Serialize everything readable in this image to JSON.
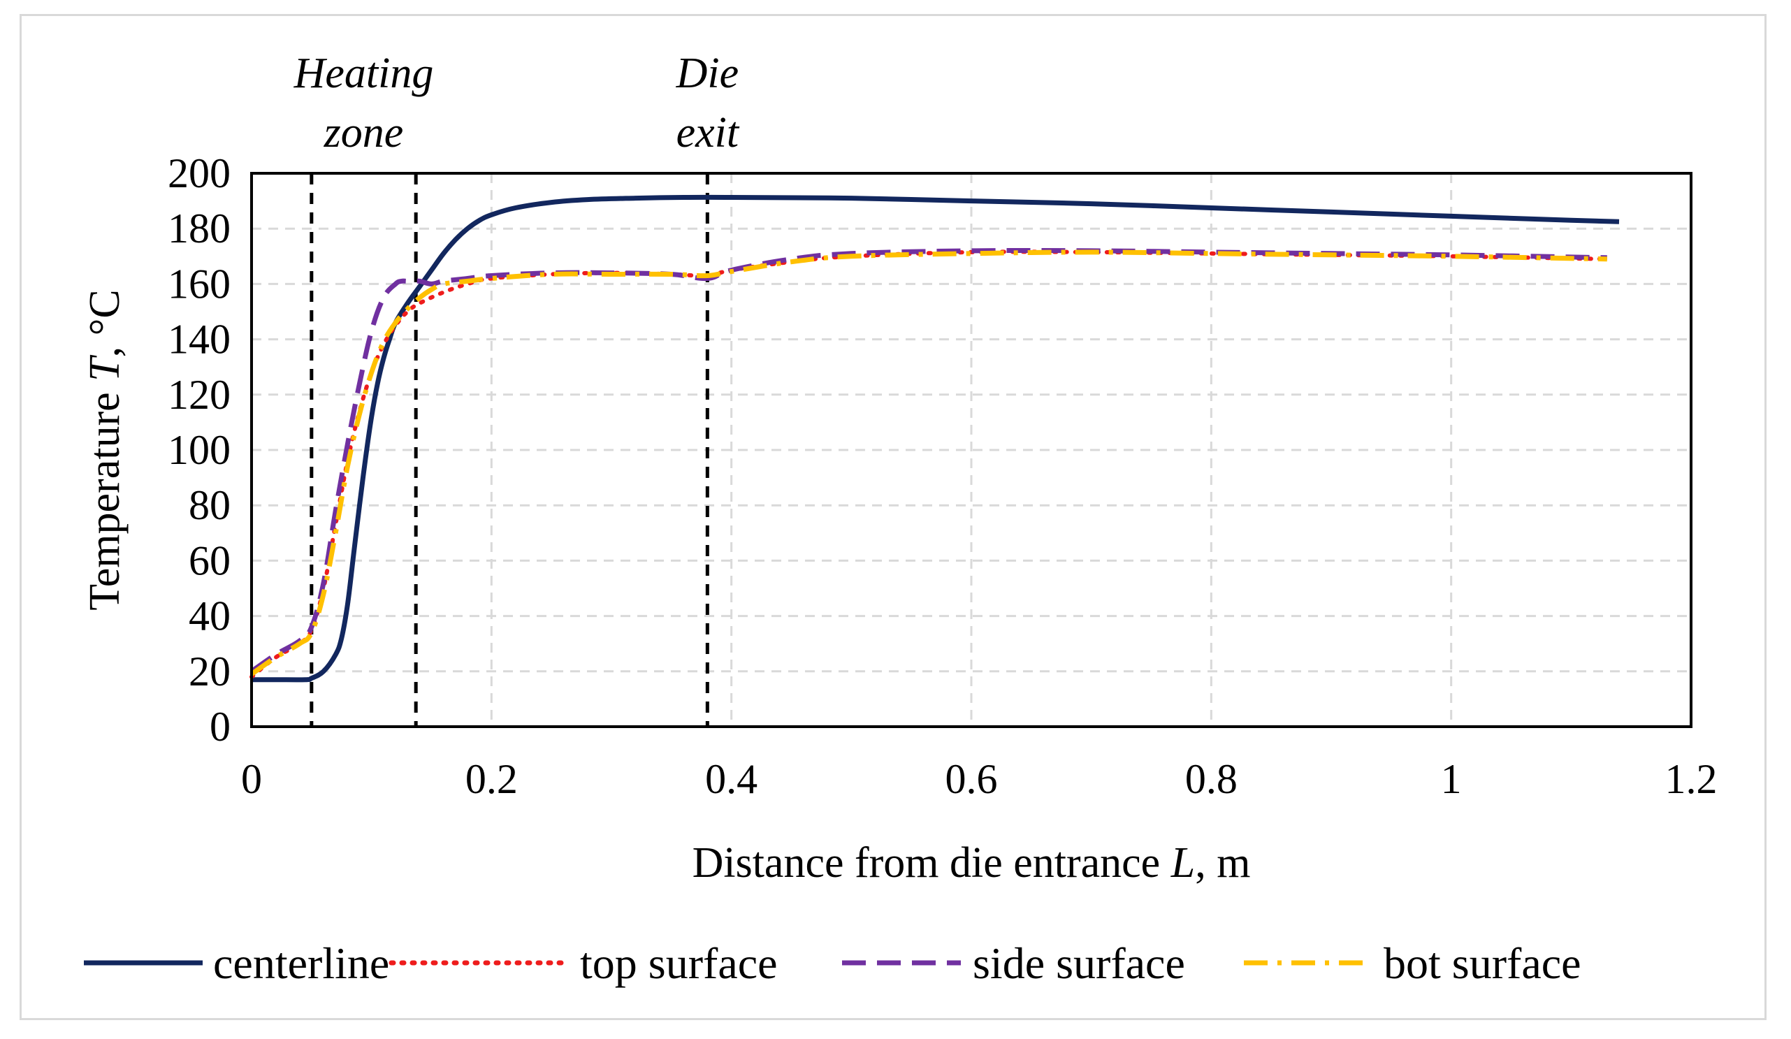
{
  "chart_data": {
    "type": "line",
    "title": "",
    "xlabel": {
      "prefix": "Distance from die entrance ",
      "symbol": "L",
      "suffix": ", m"
    },
    "ylabel": {
      "prefix": "Temperature ",
      "symbol": "T",
      "suffix": ", °C"
    },
    "xlim": [
      0,
      1.2
    ],
    "ylim": [
      0,
      200
    ],
    "xticks": [
      0,
      0.2,
      0.4,
      0.6,
      0.8,
      1.0,
      1.2
    ],
    "xtick_labels": [
      "0",
      "0.2",
      "0.4",
      "0.6",
      "0.8",
      "1",
      "1.2"
    ],
    "yticks": [
      0,
      20,
      40,
      60,
      80,
      100,
      120,
      140,
      160,
      180,
      200
    ],
    "ytick_labels": [
      "0",
      "20",
      "40",
      "60",
      "80",
      "100",
      "120",
      "140",
      "160",
      "180",
      "200"
    ],
    "grid": true,
    "legend_position": "bottom",
    "annotations": [
      {
        "lines": [
          "Heating",
          "zone"
        ],
        "x_range": [
          0.05,
          0.137
        ]
      },
      {
        "lines": [
          "Die",
          "exit"
        ],
        "x": 0.38
      }
    ],
    "vlines": [
      0.05,
      0.137,
      0.38
    ],
    "series": [
      {
        "name": "centerline",
        "color": "#12275e",
        "style": "solid",
        "x": [
          0,
          0.02,
          0.045,
          0.05,
          0.06,
          0.07,
          0.075,
          0.08,
          0.085,
          0.09,
          0.095,
          0.1,
          0.105,
          0.11,
          0.115,
          0.12,
          0.13,
          0.14,
          0.15,
          0.16,
          0.17,
          0.18,
          0.19,
          0.2,
          0.22,
          0.25,
          0.28,
          0.32,
          0.36,
          0.4,
          0.5,
          0.6,
          0.7,
          0.8,
          0.9,
          1.0,
          1.1,
          1.14
        ],
        "y": [
          17,
          17,
          17,
          17.5,
          20,
          26,
          32,
          44,
          62,
          80,
          97,
          112,
          124,
          133,
          140,
          146,
          153,
          159,
          165,
          171,
          176,
          180,
          183,
          185,
          187.5,
          189.5,
          190.5,
          191,
          191.3,
          191.3,
          191,
          190,
          189,
          187.5,
          186,
          184.5,
          183,
          182.5
        ]
      },
      {
        "name": "top surface",
        "color": "#ee1c1c",
        "style": "dotted",
        "x": [
          0,
          0.02,
          0.04,
          0.05,
          0.06,
          0.07,
          0.08,
          0.09,
          0.1,
          0.11,
          0.12,
          0.13,
          0.14,
          0.16,
          0.18,
          0.2,
          0.25,
          0.3,
          0.35,
          0.38,
          0.4,
          0.45,
          0.5,
          0.6,
          0.7,
          0.8,
          0.9,
          1.0,
          1.13
        ],
        "y": [
          18,
          25,
          30,
          35,
          50,
          73,
          96,
          114,
          128,
          138,
          145,
          150,
          153,
          157,
          160,
          162,
          163.5,
          164,
          163.5,
          163,
          165,
          168,
          170,
          171.5,
          171.5,
          171,
          170.5,
          170,
          169
        ]
      },
      {
        "name": "side surface",
        "color": "#7030a0",
        "style": "dashed",
        "x": [
          0,
          0.02,
          0.04,
          0.05,
          0.06,
          0.07,
          0.08,
          0.09,
          0.1,
          0.11,
          0.12,
          0.125,
          0.13,
          0.14,
          0.15,
          0.16,
          0.18,
          0.2,
          0.25,
          0.3,
          0.35,
          0.38,
          0.4,
          0.45,
          0.5,
          0.6,
          0.7,
          0.8,
          0.9,
          1.0,
          1.13
        ],
        "y": [
          20,
          26,
          31,
          36,
          52,
          78,
          102,
          124,
          143,
          155,
          160,
          161,
          161,
          161,
          160,
          161,
          162,
          163,
          164,
          164,
          163.5,
          162,
          165,
          169,
          171,
          172,
          172,
          171.5,
          171,
          170.5,
          169.5
        ]
      },
      {
        "name": "bot surface",
        "color": "#ffc000",
        "style": "dashdot",
        "x": [
          0,
          0.02,
          0.04,
          0.05,
          0.06,
          0.07,
          0.08,
          0.09,
          0.1,
          0.11,
          0.12,
          0.13,
          0.14,
          0.15,
          0.16,
          0.18,
          0.2,
          0.25,
          0.3,
          0.35,
          0.38,
          0.4,
          0.45,
          0.5,
          0.6,
          0.7,
          0.8,
          0.9,
          1.0,
          1.13
        ],
        "y": [
          19,
          25,
          30,
          34,
          48,
          70,
          94,
          113,
          128,
          139,
          146,
          151,
          155,
          158,
          160,
          161,
          162,
          163.5,
          163.5,
          163.5,
          163,
          164.5,
          168,
          170,
          171,
          171.5,
          171,
          170.5,
          170,
          169
        ]
      }
    ]
  }
}
